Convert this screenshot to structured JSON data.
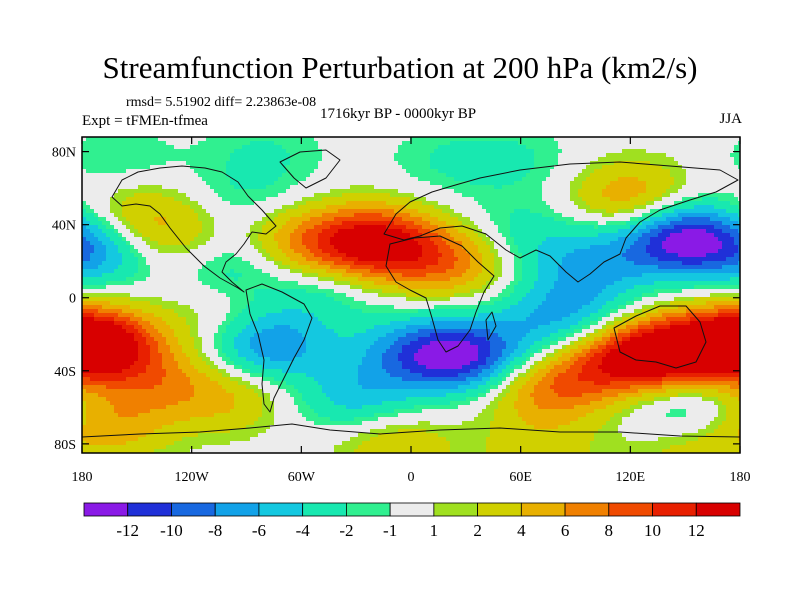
{
  "title": "Streamfunction Perturbation at 200 hPa (km2/s)",
  "subtitle": {
    "rmsd_line": "rmsd= 5.51902 diff= 2.23863e-08",
    "experiment": "Expt = tFMEn-tfmea",
    "period": "1716kyr BP - 0000kyr BP",
    "season": "JJA"
  },
  "chart_data": {
    "type": "heatmap",
    "title": "Streamfunction Perturbation at 200 hPa (km2/s)",
    "x_tick_labels": [
      "180",
      "120W",
      "60W",
      "0",
      "60E",
      "120E",
      "180"
    ],
    "x_ticks_lon": [
      -180,
      -120,
      -60,
      0,
      60,
      120,
      180
    ],
    "y_tick_labels": [
      "80N",
      "40N",
      "0",
      "40S",
      "80S"
    ],
    "y_ticks_lat": [
      80,
      40,
      0,
      -40,
      -80
    ],
    "xlim": [
      -180,
      180
    ],
    "ylim": [
      -90,
      90
    ],
    "colorbar": {
      "labels": [
        "-12",
        "-10",
        "-8",
        "-6",
        "-4",
        "-2",
        "-1",
        "1",
        "2",
        "4",
        "6",
        "8",
        "10",
        "12"
      ],
      "levels": [
        -12,
        -10,
        -8,
        -6,
        -4,
        -2,
        -1,
        1,
        2,
        4,
        6,
        8,
        10,
        12
      ],
      "colors": [
        "#8a1ae6",
        "#2030d8",
        "#1868e0",
        "#12a2e8",
        "#14c8e0",
        "#18e8b0",
        "#30f090",
        "#ececec",
        "#a0e020",
        "#d0d000",
        "#e8b000",
        "#f08000",
        "#f04a00",
        "#e82000",
        "#d80000"
      ]
    },
    "anomalies": [
      {
        "lon": -20,
        "lat": 30,
        "value": 13
      },
      {
        "lon": -60,
        "lat": 30,
        "value": 6
      },
      {
        "lon": 20,
        "lat": 20,
        "value": 7
      },
      {
        "lon": -100,
        "lat": 20,
        "value": -4
      },
      {
        "lon": -168,
        "lat": 25,
        "value": -6
      },
      {
        "lon": -150,
        "lat": 45,
        "value": 4
      },
      {
        "lon": -130,
        "lat": 30,
        "value": 4
      },
      {
        "lon": 150,
        "lat": 32,
        "value": -13
      },
      {
        "lon": 100,
        "lat": 20,
        "value": -5
      },
      {
        "lon": 60,
        "lat": 35,
        "value": -3
      },
      {
        "lon": 120,
        "lat": 55,
        "value": 6
      },
      {
        "lon": 20,
        "lat": 75,
        "value": -2
      },
      {
        "lon": -160,
        "lat": 75,
        "value": -2
      },
      {
        "lon": -90,
        "lat": 55,
        "value": -2
      },
      {
        "lon": -80,
        "lat": 80,
        "value": -2
      },
      {
        "lon": 60,
        "lat": 75,
        "value": -2
      },
      {
        "lon": -50,
        "lat": 5,
        "value": -3
      },
      {
        "lon": 90,
        "lat": 0,
        "value": -3
      },
      {
        "lon": 140,
        "lat": -30,
        "value": 12
      },
      {
        "lon": 175,
        "lat": -25,
        "value": 9
      },
      {
        "lon": -170,
        "lat": -25,
        "value": 10
      },
      {
        "lon": -100,
        "lat": -15,
        "value": 3
      },
      {
        "lon": -80,
        "lat": -25,
        "value": -9
      },
      {
        "lon": 30,
        "lat": -32,
        "value": -11
      },
      {
        "lon": 0,
        "lat": -30,
        "value": -6
      },
      {
        "lon": 80,
        "lat": -15,
        "value": -5
      },
      {
        "lon": 110,
        "lat": -35,
        "value": 8
      },
      {
        "lon": 75,
        "lat": -50,
        "value": 7
      },
      {
        "lon": -30,
        "lat": -55,
        "value": -5
      },
      {
        "lon": -100,
        "lat": -55,
        "value": 4
      },
      {
        "lon": -140,
        "lat": -45,
        "value": 5
      },
      {
        "lon": -165,
        "lat": -70,
        "value": 5
      },
      {
        "lon": -10,
        "lat": -80,
        "value": 4
      },
      {
        "lon": 150,
        "lat": -60,
        "value": -4
      },
      {
        "lon": 150,
        "lat": -85,
        "value": 3
      },
      {
        "lon": 70,
        "lat": -85,
        "value": 3
      }
    ]
  }
}
